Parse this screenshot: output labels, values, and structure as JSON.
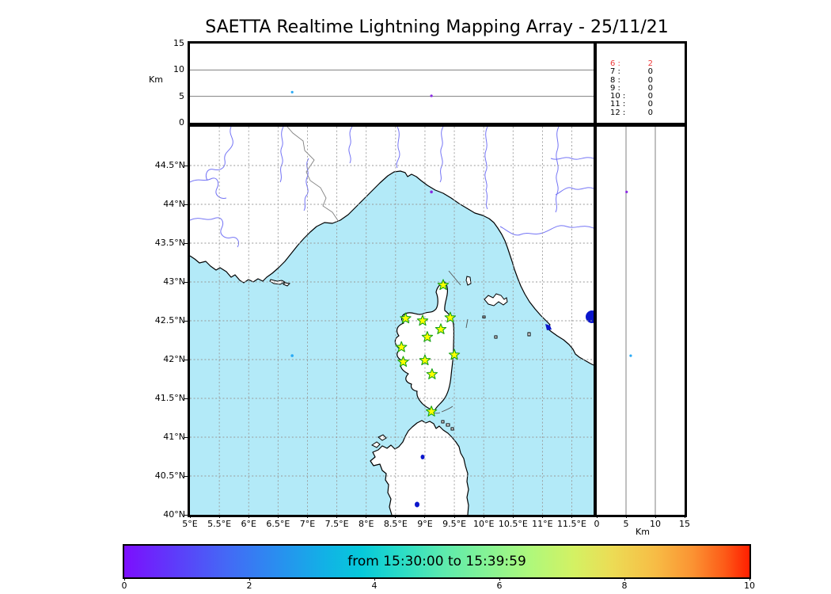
{
  "title": "SAETTA Realtime Lightning Mapping Array - 25/11/21",
  "colors": {
    "sea": "#b3eaf8",
    "land": "#ffffff",
    "coast": "#000000",
    "river": "#7474f5",
    "country_border": "#808080",
    "grid": "#999999",
    "lake": "#0b16cc",
    "station_fill": "#ffff00",
    "station_stroke": "#17a317",
    "legend_highlight": "#ee3b3b"
  },
  "panels": {
    "alt_lon": {
      "ylabel": "Km",
      "yticks": [
        {
          "km": 0,
          "label": "0"
        },
        {
          "km": 5,
          "label": "5"
        },
        {
          "km": 10,
          "label": "10"
        },
        {
          "km": 15,
          "label": "15"
        }
      ]
    },
    "legend_counts": {
      "rows": [
        {
          "label": "6",
          "value": "2",
          "highlight": true
        },
        {
          "label": "7",
          "value": "0",
          "highlight": false
        },
        {
          "label": "8",
          "value": "0",
          "highlight": false
        },
        {
          "label": "9",
          "value": "0",
          "highlight": false
        },
        {
          "label": "10",
          "value": "0",
          "highlight": false
        },
        {
          "label": "11",
          "value": "0",
          "highlight": false
        },
        {
          "label": "12",
          "value": "0",
          "highlight": false
        }
      ]
    },
    "map": {
      "lon_ticks": [
        {
          "lon": 5,
          "label": "5°E"
        },
        {
          "lon": 5.5,
          "label": "5.5°E"
        },
        {
          "lon": 6,
          "label": "6°E"
        },
        {
          "lon": 6.5,
          "label": "6.5°E"
        },
        {
          "lon": 7,
          "label": "7°E"
        },
        {
          "lon": 7.5,
          "label": "7.5°E"
        },
        {
          "lon": 8,
          "label": "8°E"
        },
        {
          "lon": 8.5,
          "label": "8.5°E"
        },
        {
          "lon": 9,
          "label": "9°E"
        },
        {
          "lon": 9.5,
          "label": "9.5°E"
        },
        {
          "lon": 10,
          "label": "10°E"
        },
        {
          "lon": 10.5,
          "label": "10.5°E"
        },
        {
          "lon": 11,
          "label": "11°E"
        },
        {
          "lon": 11.5,
          "label": "11.5°E"
        }
      ],
      "lat_ticks": [
        {
          "lat": 44.5,
          "label": "44.5°N"
        },
        {
          "lat": 44,
          "label": "44°N"
        },
        {
          "lat": 43.5,
          "label": "43.5°N"
        },
        {
          "lat": 43,
          "label": "43°N"
        },
        {
          "lat": 42.5,
          "label": "42.5°N"
        },
        {
          "lat": 42,
          "label": "42°N"
        },
        {
          "lat": 41.5,
          "label": "41.5°N"
        },
        {
          "lat": 41,
          "label": "41°N"
        },
        {
          "lat": 40.5,
          "label": "40.5°N"
        },
        {
          "lat": 40,
          "label": "40°N"
        }
      ]
    },
    "alt_lat": {
      "xlabel": "Km",
      "xticks": [
        {
          "km": 0,
          "label": "0"
        },
        {
          "km": 5,
          "label": "5"
        },
        {
          "km": 10,
          "label": "10"
        },
        {
          "km": 15,
          "label": "15"
        }
      ]
    }
  },
  "colorbar": {
    "title": "from 15:30:00 to 15:39:59",
    "ticks": [
      {
        "v": 0,
        "label": "0"
      },
      {
        "v": 2,
        "label": "2"
      },
      {
        "v": 4,
        "label": "4"
      },
      {
        "v": 6,
        "label": "6"
      },
      {
        "v": 8,
        "label": "8"
      },
      {
        "v": 10,
        "label": "10"
      }
    ],
    "range": [
      0,
      10
    ],
    "colormap": "rainbow"
  },
  "chart_data": {
    "type": "scatter",
    "title": "SAETTA Realtime Lightning Mapping Array - 25/11/21",
    "time_window": "from 15:30:00 to 15:39:59",
    "map_extent": {
      "lon": [
        5,
        11.87
      ],
      "lat": [
        40,
        45
      ]
    },
    "altitude_km_range": [
      0,
      15
    ],
    "altitude_gridlines_km": [
      5,
      10
    ],
    "stations_lon_lat": [
      [
        9.31,
        42.96
      ],
      [
        8.67,
        42.53
      ],
      [
        8.96,
        42.5
      ],
      [
        9.43,
        42.54
      ],
      [
        9.27,
        42.39
      ],
      [
        9.04,
        42.29
      ],
      [
        8.6,
        42.16
      ],
      [
        9.5,
        42.06
      ],
      [
        9.0,
        41.99
      ],
      [
        8.63,
        41.97
      ],
      [
        9.12,
        41.81
      ],
      [
        9.11,
        41.33
      ]
    ],
    "sources": [
      {
        "lon": 6.74,
        "lat": 42.05,
        "alt_km": 5.8,
        "color": "#29aaf5"
      },
      {
        "lon": 9.11,
        "lat": 44.16,
        "alt_km": 5.1,
        "color": "#8a2be2"
      }
    ],
    "counts_by_min_stations": {
      "6": 2,
      "7": 0,
      "8": 0,
      "9": 0,
      "10": 0,
      "11": 0,
      "12": 0
    }
  }
}
